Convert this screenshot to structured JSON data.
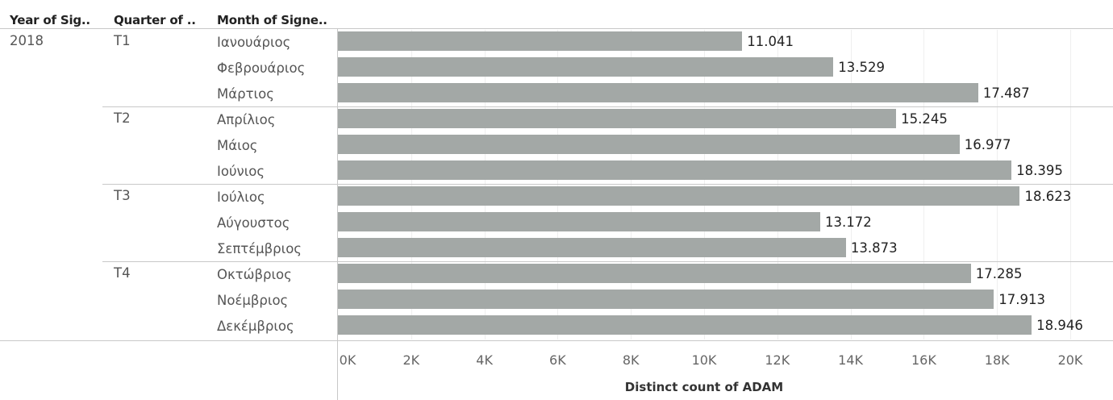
{
  "headers": {
    "year": "Year of Sig..",
    "quarter": "Quarter of ..",
    "month": "Month of Signe.."
  },
  "year_label": "2018",
  "quarters": [
    "T1",
    "T2",
    "T3",
    "T4"
  ],
  "chart_data": {
    "type": "bar",
    "orientation": "horizontal",
    "categories": [
      "Ιανουάριος",
      "Φεβρουάριος",
      "Μάρτιος",
      "Απρίλιος",
      "Μάιος",
      "Ιούνιος",
      "Ιούλιος",
      "Αύγουστος",
      "Σεπτέμβριος",
      "Οκτώβριος",
      "Νοέμβριος",
      "Δεκέμβριος"
    ],
    "values": [
      11041,
      13529,
      17487,
      15245,
      16977,
      18395,
      18623,
      13172,
      13873,
      17285,
      17913,
      18946
    ],
    "data_labels": [
      "11.041",
      "13.529",
      "17.487",
      "15.245",
      "16.977",
      "18.395",
      "18.623",
      "13.172",
      "13.873",
      "17.285",
      "17.913",
      "18.946"
    ],
    "xlabel": "Distinct count of ADAM",
    "xlim": [
      0,
      20000
    ],
    "ticks": [
      0,
      2000,
      4000,
      6000,
      8000,
      10000,
      12000,
      14000,
      16000,
      18000,
      20000
    ],
    "tick_labels": [
      "0K",
      "2K",
      "4K",
      "6K",
      "8K",
      "10K",
      "12K",
      "14K",
      "16K",
      "18K",
      "20K"
    ],
    "bar_color": "#a3a8a6",
    "grid": true
  }
}
